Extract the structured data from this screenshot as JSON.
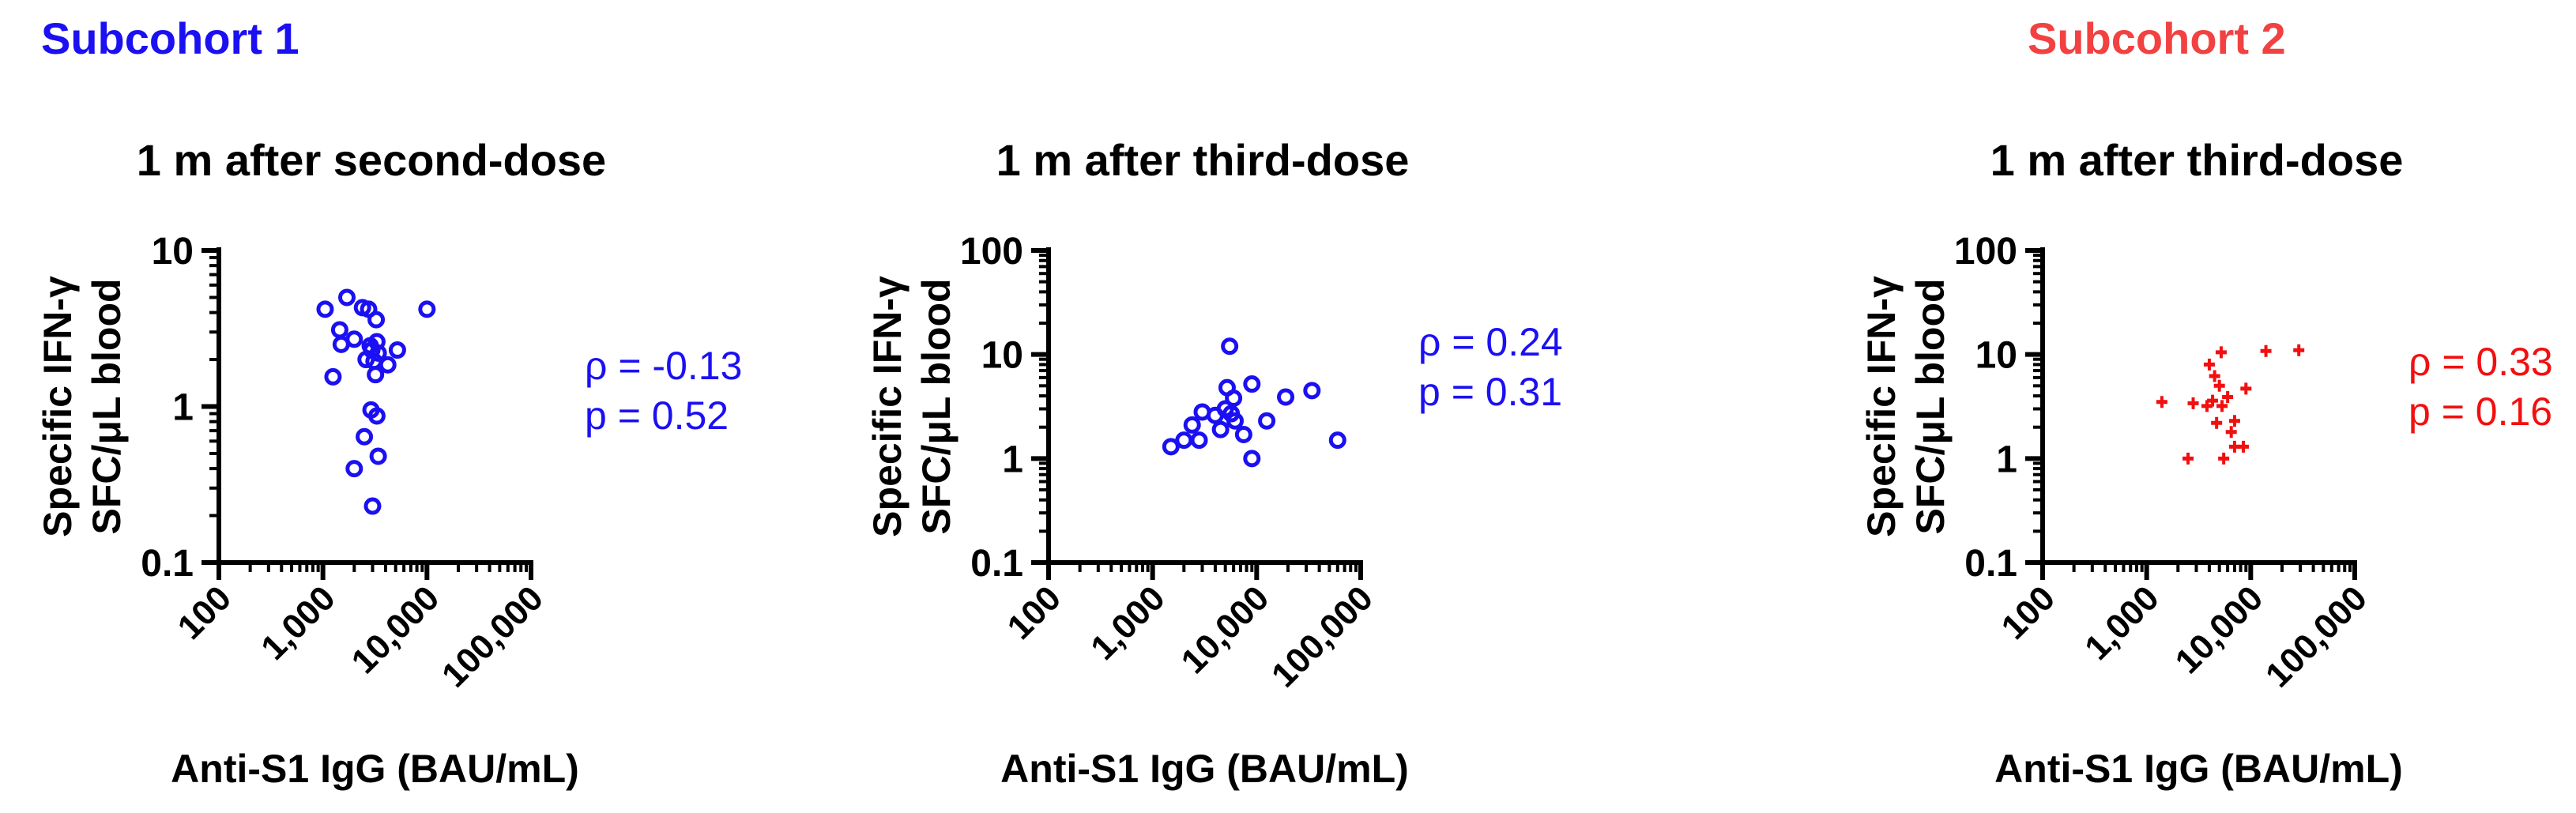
{
  "figure": {
    "subcohorts": [
      {
        "label": "Subcohort 1",
        "color": "#1b10f2"
      },
      {
        "label": "Subcohort 2",
        "color": "#f24141"
      }
    ]
  },
  "chart_data": [
    {
      "type": "scatter",
      "title": "1 m after second-dose",
      "xlabel": "Anti-S1 IgG (BAU/mL)",
      "ylabel": [
        "Specific IFN-γ",
        "SFC/μL blood"
      ],
      "x_scale": "log",
      "y_scale": "log",
      "xlim": [
        100,
        100000
      ],
      "ylim": [
        0.1,
        10
      ],
      "x_ticks": [
        "100",
        "1,000",
        "10,000",
        "100,000"
      ],
      "y_ticks": [
        "0.1",
        "1",
        "10"
      ],
      "marker": "open-circle",
      "color": "#1b10f2",
      "annotation": [
        "ρ = -0.13",
        "p = 0.52"
      ],
      "points": [
        {
          "x": 1050,
          "y": 4.2
        },
        {
          "x": 1250,
          "y": 1.55
        },
        {
          "x": 1450,
          "y": 3.1
        },
        {
          "x": 1500,
          "y": 2.5
        },
        {
          "x": 1700,
          "y": 5.0
        },
        {
          "x": 2000,
          "y": 2.7
        },
        {
          "x": 2400,
          "y": 4.3
        },
        {
          "x": 2600,
          "y": 2.0
        },
        {
          "x": 2750,
          "y": 4.2
        },
        {
          "x": 2850,
          "y": 2.45
        },
        {
          "x": 2950,
          "y": 2.3
        },
        {
          "x": 3100,
          "y": 1.95
        },
        {
          "x": 3200,
          "y": 1.6
        },
        {
          "x": 3250,
          "y": 3.6
        },
        {
          "x": 3300,
          "y": 2.6
        },
        {
          "x": 3400,
          "y": 2.2
        },
        {
          "x": 2900,
          "y": 0.95
        },
        {
          "x": 3300,
          "y": 0.87
        },
        {
          "x": 2500,
          "y": 0.64
        },
        {
          "x": 3400,
          "y": 0.48
        },
        {
          "x": 2000,
          "y": 0.4
        },
        {
          "x": 3000,
          "y": 0.23
        },
        {
          "x": 4200,
          "y": 1.85
        },
        {
          "x": 5200,
          "y": 2.3
        },
        {
          "x": 10000,
          "y": 4.2
        }
      ]
    },
    {
      "type": "scatter",
      "title": "1 m after third-dose",
      "xlabel": "Anti-S1 IgG (BAU/mL)",
      "ylabel": [
        "Specific IFN-γ",
        "SFC/μL blood"
      ],
      "x_scale": "log",
      "y_scale": "log",
      "xlim": [
        100,
        100000
      ],
      "ylim": [
        0.1,
        100
      ],
      "x_ticks": [
        "100",
        "1,000",
        "10,000",
        "100,000"
      ],
      "y_ticks": [
        "0.1",
        "1",
        "10",
        "100"
      ],
      "marker": "open-circle",
      "color": "#1b10f2",
      "annotation": [
        "ρ = 0.24",
        "p = 0.31"
      ],
      "points": [
        {
          "x": 1500,
          "y": 1.3
        },
        {
          "x": 2000,
          "y": 1.5
        },
        {
          "x": 2400,
          "y": 2.1
        },
        {
          "x": 2800,
          "y": 1.5
        },
        {
          "x": 3000,
          "y": 2.8
        },
        {
          "x": 4000,
          "y": 2.6
        },
        {
          "x": 4500,
          "y": 1.9
        },
        {
          "x": 5000,
          "y": 3.0
        },
        {
          "x": 5200,
          "y": 4.8
        },
        {
          "x": 5500,
          "y": 12.0
        },
        {
          "x": 5700,
          "y": 2.7
        },
        {
          "x": 6000,
          "y": 3.8
        },
        {
          "x": 6200,
          "y": 2.3
        },
        {
          "x": 7500,
          "y": 1.7
        },
        {
          "x": 9000,
          "y": 5.2
        },
        {
          "x": 9000,
          "y": 1.0
        },
        {
          "x": 12500,
          "y": 2.3
        },
        {
          "x": 19000,
          "y": 3.9
        },
        {
          "x": 34000,
          "y": 4.5
        },
        {
          "x": 60000,
          "y": 1.5
        }
      ]
    },
    {
      "type": "scatter",
      "title": "1 m after third-dose",
      "xlabel": "Anti-S1 IgG (BAU/mL)",
      "ylabel": [
        "Specific IFN-γ",
        "SFC/μL blood"
      ],
      "x_scale": "log",
      "y_scale": "log",
      "xlim": [
        100,
        100000
      ],
      "ylim": [
        0.1,
        100
      ],
      "x_ticks": [
        "100",
        "1,000",
        "10,000",
        "100,000"
      ],
      "y_ticks": [
        "0.1",
        "1",
        "10",
        "100"
      ],
      "marker": "filled-plus",
      "color": "#f20f0f",
      "annotation": [
        "ρ = 0.33",
        "p = 0.16"
      ],
      "points": [
        {
          "x": 1400,
          "y": 3.5
        },
        {
          "x": 2500,
          "y": 1.0
        },
        {
          "x": 2800,
          "y": 3.4
        },
        {
          "x": 3800,
          "y": 3.2
        },
        {
          "x": 4000,
          "y": 8.0
        },
        {
          "x": 4300,
          "y": 3.6
        },
        {
          "x": 4500,
          "y": 6.2
        },
        {
          "x": 4700,
          "y": 2.2
        },
        {
          "x": 5000,
          "y": 5.0
        },
        {
          "x": 5200,
          "y": 10.5
        },
        {
          "x": 5300,
          "y": 3.2
        },
        {
          "x": 5500,
          "y": 1.0
        },
        {
          "x": 6000,
          "y": 3.9
        },
        {
          "x": 6500,
          "y": 1.8
        },
        {
          "x": 7000,
          "y": 2.3
        },
        {
          "x": 7000,
          "y": 1.3
        },
        {
          "x": 8500,
          "y": 1.3
        },
        {
          "x": 9000,
          "y": 4.7
        },
        {
          "x": 14000,
          "y": 10.8
        },
        {
          "x": 29000,
          "y": 11.0
        }
      ]
    }
  ]
}
